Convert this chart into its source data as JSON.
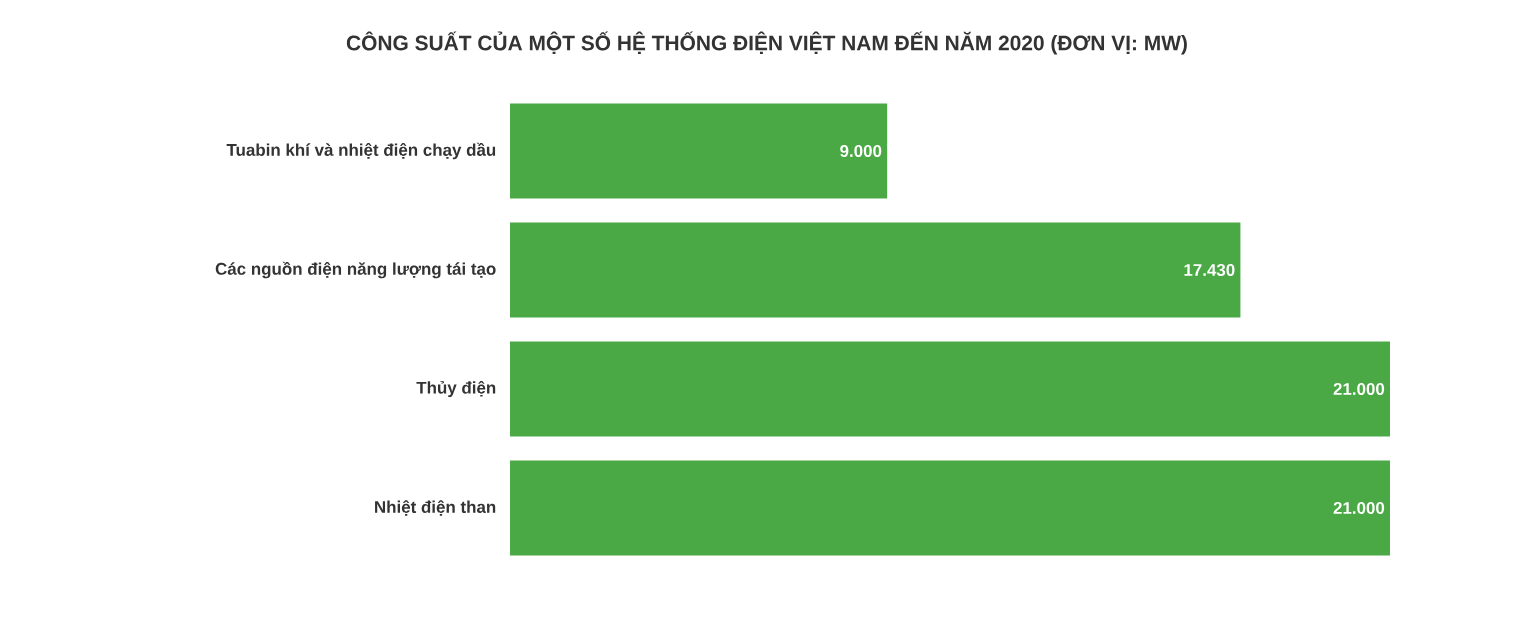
{
  "chart_data": {
    "type": "bar",
    "orientation": "horizontal",
    "title": "CÔNG SUẤT CỦA MỘT SỐ HỆ THỐNG ĐIỆN VIỆT NAM ĐẾN NĂM 2020 (ĐƠN VỊ: MW)",
    "categories": [
      "Tuabin khí và nhiệt điện chạy dầu",
      "Các nguồn điện năng lượng tái tạo",
      "Thủy điện",
      "Nhiệt điện than"
    ],
    "values": [
      9000,
      17430,
      21000,
      21000
    ],
    "value_labels": [
      "9.000",
      "17.430",
      "21.000",
      "21.000"
    ],
    "color": "#4aa945"
  }
}
